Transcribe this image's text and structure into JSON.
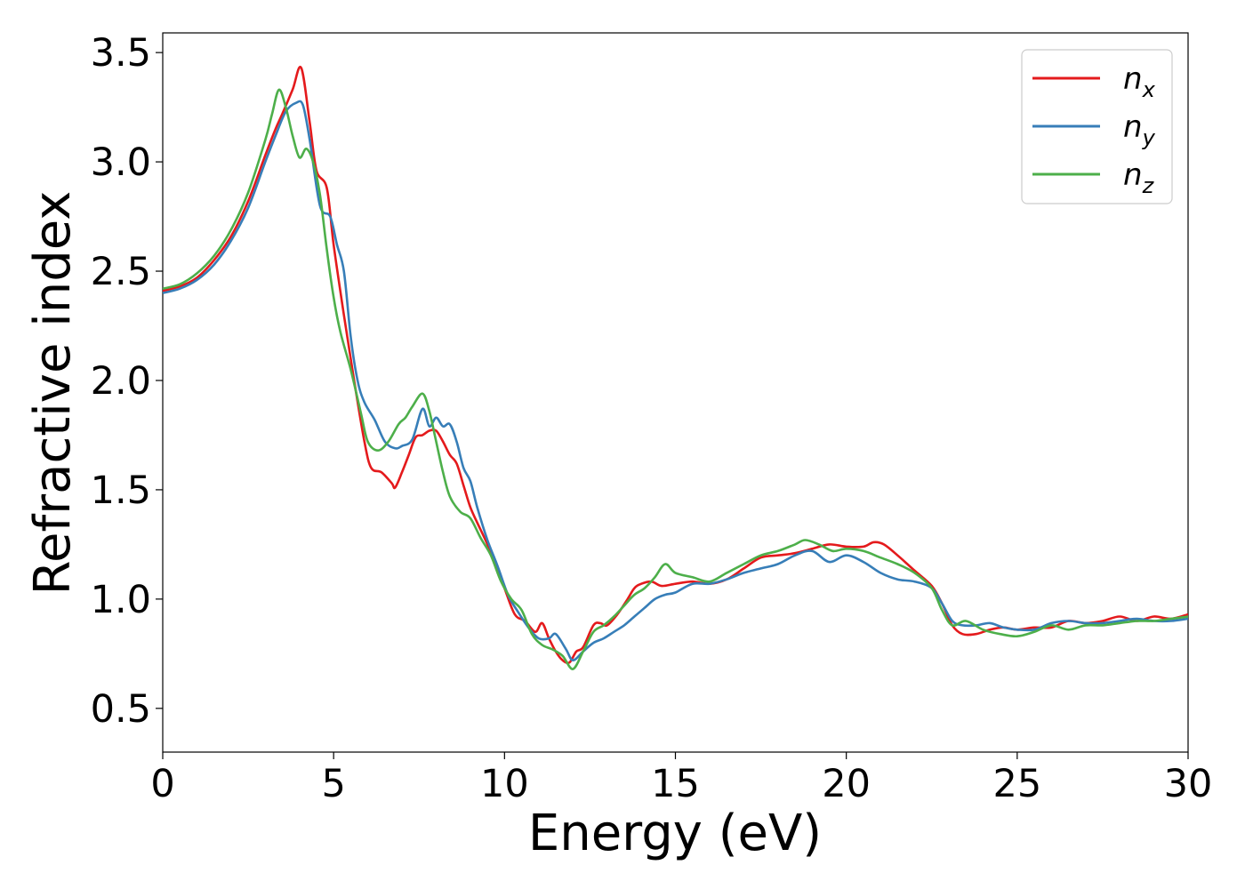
{
  "chart_data": {
    "type": "line",
    "xlabel": "Energy (eV)",
    "ylabel": "Refractive index",
    "xlim": [
      0,
      30
    ],
    "ylim": [
      0.3,
      3.59
    ],
    "xticks": [
      0,
      5,
      10,
      15,
      20,
      25,
      30
    ],
    "yticks": [
      0.5,
      1.0,
      1.5,
      2.0,
      2.5,
      3.0,
      3.5
    ],
    "xtick_labels": [
      "0",
      "5",
      "10",
      "15",
      "20",
      "25",
      "30"
    ],
    "ytick_labels": [
      "0.5",
      "1.0",
      "1.5",
      "2.0",
      "2.5",
      "3.0",
      "3.5"
    ],
    "grid": false,
    "legend_placement": "top-right",
    "series": [
      {
        "name": "n_x",
        "legend_base": "n",
        "legend_sub": "x",
        "color": "#e41a1c",
        "x": [
          0,
          0.5,
          1,
          1.5,
          2,
          2.5,
          3,
          3.3,
          3.5,
          3.8,
          4.05,
          4.3,
          4.5,
          4.8,
          5.0,
          5.3,
          5.6,
          5.9,
          6.1,
          6.4,
          6.7,
          6.8,
          7.0,
          7.2,
          7.4,
          7.6,
          7.8,
          8.0,
          8.2,
          8.4,
          8.6,
          8.8,
          9.0,
          9.2,
          9.5,
          9.8,
          10.0,
          10.3,
          10.6,
          10.9,
          11.1,
          11.3,
          11.5,
          11.7,
          11.9,
          12.1,
          12.3,
          12.6,
          12.8,
          13.0,
          13.3,
          13.6,
          13.8,
          14.0,
          14.3,
          14.6,
          15.0,
          15.5,
          16.0,
          16.5,
          17.0,
          17.5,
          18.0,
          18.5,
          19.0,
          19.5,
          20.0,
          20.5,
          20.8,
          21.1,
          21.5,
          22.0,
          22.5,
          22.8,
          23.1,
          23.4,
          23.8,
          24.2,
          24.6,
          25.0,
          25.5,
          26.0,
          26.5,
          27.0,
          27.5,
          28.0,
          28.5,
          29.0,
          29.5,
          30.0
        ],
        "y": [
          2.41,
          2.43,
          2.47,
          2.55,
          2.66,
          2.82,
          3.03,
          3.15,
          3.22,
          3.33,
          3.43,
          3.18,
          2.96,
          2.88,
          2.62,
          2.3,
          2.0,
          1.72,
          1.6,
          1.58,
          1.53,
          1.51,
          1.58,
          1.66,
          1.74,
          1.75,
          1.77,
          1.77,
          1.72,
          1.66,
          1.62,
          1.52,
          1.42,
          1.35,
          1.25,
          1.13,
          1.05,
          0.93,
          0.9,
          0.85,
          0.89,
          0.82,
          0.76,
          0.72,
          0.71,
          0.76,
          0.78,
          0.88,
          0.89,
          0.88,
          0.93,
          1.0,
          1.05,
          1.07,
          1.08,
          1.06,
          1.07,
          1.08,
          1.07,
          1.09,
          1.14,
          1.19,
          1.2,
          1.21,
          1.23,
          1.25,
          1.24,
          1.24,
          1.26,
          1.25,
          1.2,
          1.13,
          1.06,
          0.98,
          0.88,
          0.84,
          0.84,
          0.86,
          0.87,
          0.86,
          0.87,
          0.87,
          0.9,
          0.89,
          0.9,
          0.92,
          0.9,
          0.92,
          0.91,
          0.93
        ]
      },
      {
        "name": "n_y",
        "legend_base": "n",
        "legend_sub": "y",
        "color": "#377eb8",
        "x": [
          0,
          0.5,
          1,
          1.5,
          2,
          2.5,
          3,
          3.3,
          3.6,
          3.9,
          4.1,
          4.3,
          4.6,
          4.9,
          5.1,
          5.3,
          5.5,
          5.7,
          5.9,
          6.2,
          6.5,
          6.8,
          7.0,
          7.3,
          7.6,
          7.8,
          8.0,
          8.2,
          8.4,
          8.6,
          8.8,
          9.0,
          9.2,
          9.5,
          9.8,
          10.1,
          10.4,
          10.7,
          11.0,
          11.3,
          11.5,
          11.8,
          12.0,
          12.3,
          12.6,
          12.9,
          13.2,
          13.5,
          13.8,
          14.1,
          14.4,
          14.7,
          15.0,
          15.5,
          16.0,
          16.5,
          17.0,
          17.5,
          18.0,
          18.5,
          19.0,
          19.5,
          20.0,
          20.5,
          21.0,
          21.5,
          22.0,
          22.5,
          22.8,
          23.1,
          23.4,
          23.8,
          24.2,
          24.6,
          25.0,
          25.5,
          26.0,
          26.5,
          27.0,
          27.5,
          28.0,
          28.5,
          29.0,
          29.5,
          30.0
        ],
        "y": [
          2.4,
          2.42,
          2.46,
          2.53,
          2.64,
          2.79,
          3.0,
          3.12,
          3.23,
          3.27,
          3.26,
          3.1,
          2.8,
          2.75,
          2.62,
          2.5,
          2.2,
          2.0,
          1.9,
          1.82,
          1.72,
          1.69,
          1.7,
          1.73,
          1.87,
          1.79,
          1.83,
          1.79,
          1.8,
          1.72,
          1.6,
          1.54,
          1.42,
          1.27,
          1.15,
          1.02,
          0.94,
          0.87,
          0.82,
          0.82,
          0.84,
          0.77,
          0.72,
          0.76,
          0.8,
          0.82,
          0.85,
          0.88,
          0.92,
          0.96,
          1.0,
          1.02,
          1.03,
          1.07,
          1.07,
          1.09,
          1.12,
          1.14,
          1.16,
          1.2,
          1.22,
          1.17,
          1.2,
          1.17,
          1.12,
          1.09,
          1.08,
          1.05,
          0.98,
          0.9,
          0.88,
          0.88,
          0.89,
          0.87,
          0.86,
          0.86,
          0.89,
          0.9,
          0.89,
          0.89,
          0.9,
          0.91,
          0.9,
          0.9,
          0.91
        ]
      },
      {
        "name": "n_z",
        "legend_base": "n",
        "legend_sub": "z",
        "color": "#4daf4a",
        "x": [
          0,
          0.5,
          1,
          1.5,
          2,
          2.5,
          3,
          3.2,
          3.4,
          3.6,
          3.8,
          4.0,
          4.2,
          4.4,
          4.6,
          4.8,
          5.0,
          5.2,
          5.5,
          5.8,
          6.0,
          6.3,
          6.6,
          6.9,
          7.1,
          7.3,
          7.6,
          7.8,
          8.0,
          8.2,
          8.4,
          8.7,
          9.0,
          9.3,
          9.6,
          9.9,
          10.2,
          10.5,
          10.8,
          11.1,
          11.4,
          11.7,
          12.0,
          12.3,
          12.6,
          12.9,
          13.2,
          13.5,
          13.8,
          14.1,
          14.4,
          14.7,
          15.0,
          15.5,
          16.0,
          16.5,
          17.0,
          17.5,
          18.0,
          18.5,
          18.8,
          19.2,
          19.6,
          20.0,
          20.5,
          21.0,
          21.5,
          22.0,
          22.5,
          22.8,
          23.1,
          23.5,
          24.0,
          24.5,
          25.0,
          25.5,
          26.0,
          26.5,
          27.0,
          27.5,
          28.0,
          28.5,
          29.0,
          29.5,
          30.0
        ],
        "y": [
          2.42,
          2.44,
          2.49,
          2.57,
          2.69,
          2.86,
          3.1,
          3.22,
          3.33,
          3.25,
          3.12,
          3.02,
          3.06,
          3.0,
          2.85,
          2.6,
          2.38,
          2.22,
          2.05,
          1.85,
          1.72,
          1.68,
          1.72,
          1.8,
          1.83,
          1.88,
          1.94,
          1.86,
          1.72,
          1.58,
          1.47,
          1.4,
          1.37,
          1.28,
          1.2,
          1.08,
          1.0,
          0.95,
          0.84,
          0.79,
          0.77,
          0.74,
          0.68,
          0.76,
          0.85,
          0.88,
          0.92,
          0.97,
          1.02,
          1.05,
          1.1,
          1.16,
          1.12,
          1.1,
          1.08,
          1.12,
          1.16,
          1.2,
          1.22,
          1.25,
          1.27,
          1.25,
          1.22,
          1.23,
          1.22,
          1.19,
          1.16,
          1.12,
          1.05,
          0.95,
          0.88,
          0.9,
          0.86,
          0.84,
          0.83,
          0.85,
          0.88,
          0.86,
          0.88,
          0.88,
          0.89,
          0.9,
          0.9,
          0.91,
          0.92
        ]
      }
    ]
  }
}
